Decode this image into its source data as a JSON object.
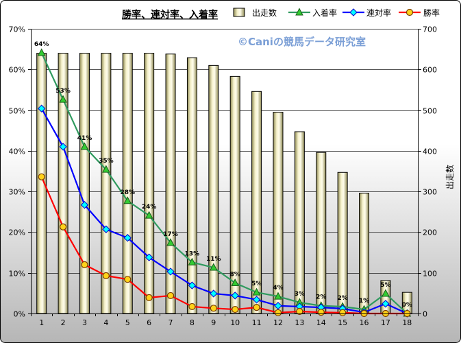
{
  "chart_data": {
    "type": "bar",
    "title": "勝率、連対率、入着率",
    "xlabel": "",
    "categories": [
      "1",
      "2",
      "3",
      "4",
      "5",
      "6",
      "7",
      "8",
      "9",
      "10",
      "11",
      "12",
      "13",
      "14",
      "15",
      "16",
      "17",
      "18"
    ],
    "series": [
      {
        "name": "出走数",
        "type": "bar",
        "axis": "right",
        "color": "#f6f2cc",
        "highlight_color": "#fffdec",
        "edge_color": "#8f8a52",
        "values": [
          640,
          640,
          640,
          640,
          640,
          640,
          638,
          629,
          610,
          583,
          546,
          495,
          447,
          396,
          347,
          296,
          81,
          52
        ]
      },
      {
        "name": "入着率",
        "type": "line",
        "axis": "left",
        "color": "#2f9a5e",
        "marker": "triangle",
        "marker_fill": "#33cc33",
        "marker_stroke": "#1a5c1a",
        "values": [
          64.1,
          52.6,
          41.0,
          35.4,
          27.7,
          24.1,
          17.4,
          12.6,
          11.3,
          7.5,
          5.2,
          4.2,
          2.7,
          1.9,
          1.7,
          1.0,
          4.9,
          0.0
        ],
        "data_labels": [
          "64%",
          "53%",
          "41%",
          "35%",
          "28%",
          "24%",
          "17%",
          "13%",
          "11%",
          "8%",
          "5%",
          "4%",
          "3%",
          "2%",
          "2%",
          "1%",
          "5%",
          "0%"
        ]
      },
      {
        "name": "連対率",
        "type": "line",
        "axis": "left",
        "color": "#0000ff",
        "marker": "diamond",
        "marker_fill": "#00ffff",
        "marker_stroke": "#0000cc",
        "values": [
          50.4,
          41.0,
          26.7,
          20.7,
          18.6,
          13.8,
          10.3,
          6.9,
          4.9,
          4.4,
          3.4,
          1.9,
          1.7,
          1.5,
          1.2,
          0.3,
          2.4,
          0.0
        ]
      },
      {
        "name": "勝率",
        "type": "line",
        "axis": "left",
        "color": "#ff0000",
        "marker": "circle",
        "marker_fill": "#ffd21a",
        "marker_stroke": "#7a3d00",
        "values": [
          33.6,
          21.3,
          12.0,
          9.3,
          8.4,
          3.9,
          4.4,
          1.7,
          1.3,
          1.0,
          1.5,
          0.2,
          0.5,
          0.3,
          0.2,
          0.0,
          0.0,
          0.0
        ]
      }
    ],
    "y_left": {
      "range": [
        0,
        70
      ],
      "tick_values": [
        0,
        10,
        20,
        30,
        40,
        50,
        60,
        70
      ],
      "tick_labels": [
        "0%",
        "10%",
        "20%",
        "30%",
        "40%",
        "50%",
        "60%",
        "70%"
      ]
    },
    "y_right": {
      "label": "出走数",
      "range": [
        0,
        700
      ],
      "tick_values": [
        0,
        100,
        200,
        300,
        400,
        500,
        600,
        700
      ],
      "tick_labels": [
        "0",
        "100",
        "200",
        "300",
        "400",
        "500",
        "600",
        "700"
      ]
    },
    "grid": true,
    "legend": "top-right"
  },
  "watermark": "©Caniの競馬データ研究室",
  "watermark_color": "#7b9fd6"
}
